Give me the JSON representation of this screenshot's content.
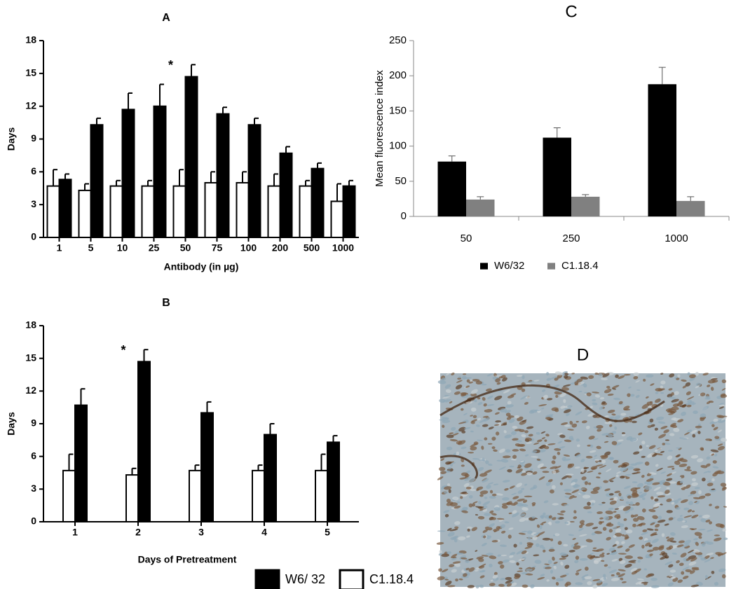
{
  "chart_data": [
    {
      "type": "bar",
      "title": "A",
      "ylabel": "Days",
      "xlabel": "Antibody (in µg)",
      "categories": [
        "1",
        "5",
        "10",
        "25",
        "50",
        "75",
        "100",
        "200",
        "500",
        "1000"
      ],
      "series": [
        {
          "color": "#000000",
          "values": [
            5.3,
            10.3,
            11.7,
            12.0,
            14.7,
            11.3,
            10.3,
            7.7,
            6.3,
            4.7
          ],
          "errors": [
            0.5,
            0.6,
            1.5,
            2.0,
            1.1,
            0.6,
            0.6,
            0.6,
            0.5,
            0.5
          ]
        },
        {
          "color": "#ffffff",
          "values": [
            4.7,
            4.3,
            4.7,
            4.7,
            4.7,
            5.0,
            5.0,
            4.7,
            4.7,
            3.3
          ],
          "errors": [
            1.5,
            0.6,
            0.5,
            0.5,
            1.5,
            1.0,
            1.0,
            1.1,
            0.5,
            1.6
          ]
        }
      ],
      "annotation": "*",
      "annotation_category": "50",
      "ylim": [
        0,
        18
      ],
      "yticks": [
        0,
        3,
        6,
        9,
        12,
        15,
        18
      ],
      "grid": false
    },
    {
      "type": "bar",
      "title": "B",
      "ylabel": "Days",
      "xlabel": "Days of Pretreatment",
      "categories": [
        "1",
        "2",
        "3",
        "4",
        "5"
      ],
      "series": [
        {
          "name": "W6/ 32",
          "color": "#000000",
          "values": [
            10.7,
            14.7,
            10.0,
            8.0,
            7.3
          ],
          "errors": [
            1.5,
            1.1,
            1.0,
            1.0,
            0.6
          ]
        },
        {
          "name": "C1.18.4",
          "color": "#ffffff",
          "values": [
            4.7,
            4.3,
            4.7,
            4.7,
            4.7
          ],
          "errors": [
            1.5,
            0.6,
            0.5,
            0.5,
            1.5
          ]
        }
      ],
      "annotation": "*",
      "annotation_category": "2",
      "ylim": [
        0,
        18
      ],
      "yticks": [
        0,
        3,
        6,
        9,
        12,
        15,
        18
      ],
      "grid": false,
      "legend": "bottom-right"
    },
    {
      "type": "bar",
      "title": "C",
      "ylabel": "Mean fluorescence index",
      "categories": [
        "50",
        "250",
        "1000"
      ],
      "series": [
        {
          "name": "W6/32",
          "color": "#000000",
          "values": [
            78,
            112,
            188
          ],
          "errors": [
            8,
            14,
            24
          ]
        },
        {
          "name": "C1.18.4",
          "color": "#808080",
          "values": [
            24,
            28,
            22
          ],
          "errors": [
            4,
            3,
            6
          ]
        }
      ],
      "ylim": [
        0,
        250
      ],
      "yticks": [
        0,
        50,
        100,
        150,
        200,
        250
      ],
      "grid": false,
      "legend": "bottom"
    },
    {
      "type": "image",
      "title": "D"
    }
  ]
}
